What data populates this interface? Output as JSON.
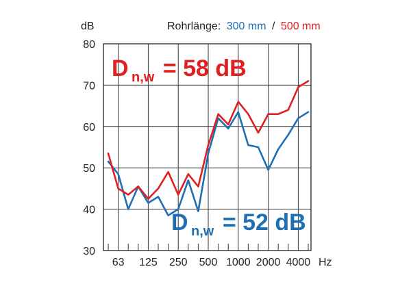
{
  "chart_data": {
    "type": "line",
    "ylabel": "dB",
    "xlabel": "Hz",
    "ylim": [
      30,
      80
    ],
    "yticks": [
      30,
      40,
      50,
      60,
      70,
      80
    ],
    "xtick_labels": [
      "63",
      "125",
      "250",
      "500",
      "1000",
      "2000",
      "4000"
    ],
    "grid": true,
    "legend": {
      "prefix": "Rohrlänge:",
      "separator": "/",
      "placement": "top-right",
      "entries": [
        {
          "label": "300 mm",
          "color": "#1f6fb5"
        },
        {
          "label": "500 mm",
          "color": "#e02020"
        }
      ]
    },
    "annotations": [
      {
        "base": "D",
        "subscript": "n,w",
        "text": "= 58 dB",
        "color": "#e02020",
        "placement": "upper-left"
      },
      {
        "base": "D",
        "subscript": "n,w",
        "text": "= 52 dB",
        "color": "#1f6fb5",
        "placement": "lower-right"
      }
    ],
    "x": [
      50,
      63,
      80,
      100,
      125,
      160,
      200,
      250,
      315,
      400,
      500,
      630,
      800,
      1000,
      1250,
      1600,
      2000,
      2500,
      3150,
      4000,
      5000
    ],
    "series": [
      {
        "name": "300 mm",
        "color": "#1f6fb5",
        "values": [
          51.5,
          48.5,
          40,
          45.5,
          41.5,
          43,
          38.5,
          40,
          47,
          39.5,
          53.5,
          62,
          59.5,
          63.5,
          55.5,
          55,
          49.5,
          54.5,
          58,
          62,
          63.5
        ]
      },
      {
        "name": "500 mm",
        "color": "#e02020",
        "values": [
          53.5,
          45,
          43.5,
          45.5,
          42.5,
          45,
          49,
          43.5,
          48.5,
          45.5,
          55.5,
          63,
          60.5,
          66,
          63,
          58.5,
          63,
          63,
          64,
          69.5,
          71
        ]
      }
    ]
  }
}
